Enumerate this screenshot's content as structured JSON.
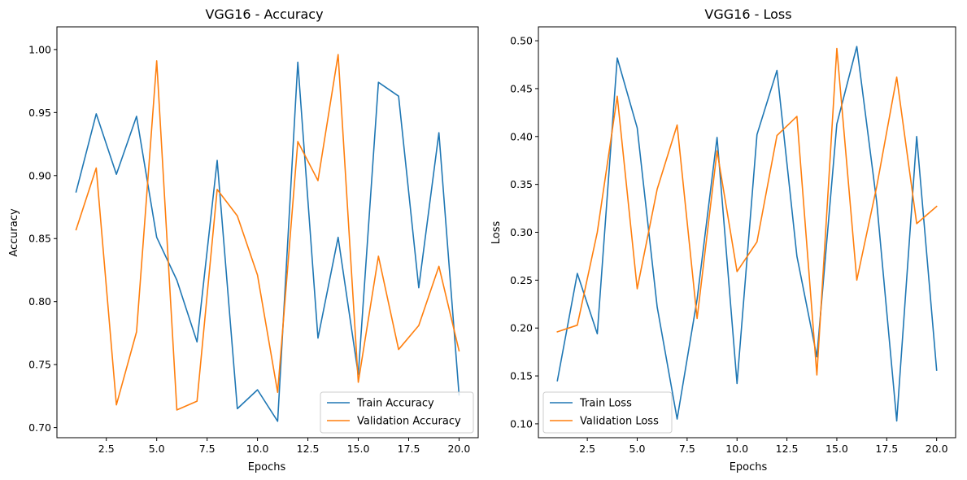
{
  "chart_data": [
    {
      "type": "line",
      "title": "VGG16 - Accuracy",
      "xlabel": "Epochs",
      "ylabel": "Accuracy",
      "xlim": [
        0.05,
        20.95
      ],
      "ylim": [
        0.692,
        1.018
      ],
      "xticks": [
        2.5,
        5.0,
        7.5,
        10.0,
        12.5,
        15.0,
        17.5,
        20.0
      ],
      "xtick_labels": [
        "2.5",
        "5.0",
        "7.5",
        "10.0",
        "12.5",
        "15.0",
        "17.5",
        "20.0"
      ],
      "yticks": [
        0.7,
        0.75,
        0.8,
        0.85,
        0.9,
        0.95,
        1.0
      ],
      "ytick_labels": [
        "0.70",
        "0.75",
        "0.80",
        "0.85",
        "0.90",
        "0.95",
        "1.00"
      ],
      "grid": false,
      "legend_position": "lower-right",
      "x": [
        1,
        2,
        3,
        4,
        5,
        6,
        7,
        8,
        9,
        10,
        11,
        12,
        13,
        14,
        15,
        16,
        17,
        18,
        19,
        20
      ],
      "series": [
        {
          "name": "Train Accuracy",
          "color": "#1f77b4",
          "values": [
            0.887,
            0.949,
            0.901,
            0.947,
            0.851,
            0.817,
            0.768,
            0.912,
            0.715,
            0.73,
            0.705,
            0.99,
            0.771,
            0.851,
            0.742,
            0.974,
            0.963,
            0.811,
            0.934,
            0.726
          ]
        },
        {
          "name": "Validation Accuracy",
          "color": "#ff7f0e",
          "values": [
            0.857,
            0.906,
            0.718,
            0.776,
            0.991,
            0.714,
            0.721,
            0.889,
            0.868,
            0.821,
            0.728,
            0.927,
            0.896,
            0.996,
            0.736,
            0.836,
            0.762,
            0.781,
            0.828,
            0.761
          ]
        }
      ]
    },
    {
      "type": "line",
      "title": "VGG16 - Loss",
      "xlabel": "Epochs",
      "ylabel": "Loss",
      "xlim": [
        0.05,
        20.95
      ],
      "ylim": [
        0.0855,
        0.5145
      ],
      "xticks": [
        2.5,
        5.0,
        7.5,
        10.0,
        12.5,
        15.0,
        17.5,
        20.0
      ],
      "xtick_labels": [
        "2.5",
        "5.0",
        "7.5",
        "10.0",
        "12.5",
        "15.0",
        "17.5",
        "20.0"
      ],
      "yticks": [
        0.1,
        0.15,
        0.2,
        0.25,
        0.3,
        0.35,
        0.4,
        0.45,
        0.5
      ],
      "ytick_labels": [
        "0.10",
        "0.15",
        "0.20",
        "0.25",
        "0.30",
        "0.35",
        "0.40",
        "0.45",
        "0.50"
      ],
      "grid": false,
      "legend_position": "lower-left",
      "x": [
        1,
        2,
        3,
        4,
        5,
        6,
        7,
        8,
        9,
        10,
        11,
        12,
        13,
        14,
        15,
        16,
        17,
        18,
        19,
        20
      ],
      "series": [
        {
          "name": "Train Loss",
          "color": "#1f77b4",
          "values": [
            0.145,
            0.257,
            0.194,
            0.482,
            0.409,
            0.222,
            0.105,
            0.23,
            0.399,
            0.142,
            0.402,
            0.469,
            0.275,
            0.17,
            0.413,
            0.494,
            0.331,
            0.103,
            0.4,
            0.156
          ]
        },
        {
          "name": "Validation Loss",
          "color": "#ff7f0e",
          "values": [
            0.196,
            0.203,
            0.3,
            0.442,
            0.241,
            0.345,
            0.412,
            0.21,
            0.385,
            0.259,
            0.29,
            0.401,
            0.421,
            0.151,
            0.492,
            0.25,
            0.348,
            0.462,
            0.309,
            0.327
          ]
        }
      ]
    }
  ]
}
